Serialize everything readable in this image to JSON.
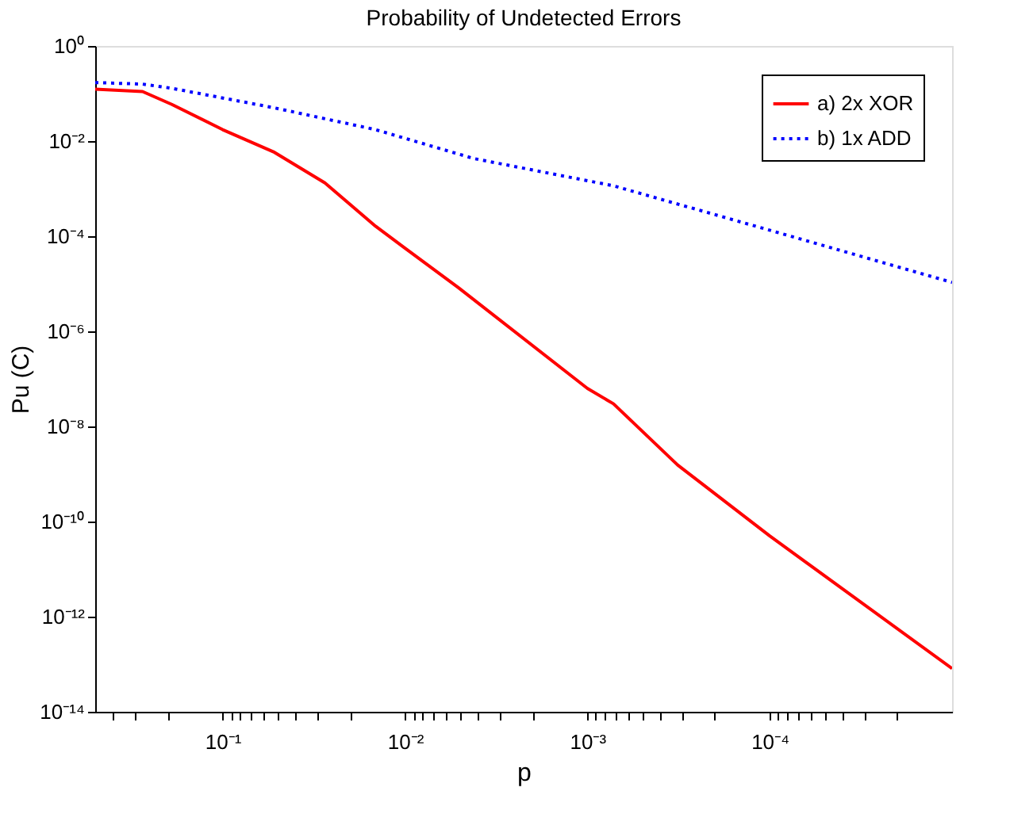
{
  "chart_data": {
    "type": "line",
    "title": "Probability of Undetected Errors",
    "xlabel": "p",
    "ylabel": "Pu (C)",
    "log": "xy",
    "grid": false,
    "legend": "top right",
    "xlim": [
      0.5,
      1e-05
    ],
    "ylim": [
      1e-14,
      1
    ],
    "xticks": [
      {
        "value": 0.4,
        "label": null
      },
      {
        "value": 0.3,
        "label": null
      },
      {
        "value": 0.2,
        "label": null
      },
      {
        "value": 0.1,
        "label": "10⁻¹"
      },
      {
        "value": 0.09,
        "label": null
      },
      {
        "value": 0.08,
        "label": null
      },
      {
        "value": 0.07,
        "label": null
      },
      {
        "value": 0.06,
        "label": null
      },
      {
        "value": 0.05,
        "label": null
      },
      {
        "value": 0.04,
        "label": null
      },
      {
        "value": 0.03,
        "label": null
      },
      {
        "value": 0.02,
        "label": null
      },
      {
        "value": 0.01,
        "label": "10⁻²"
      },
      {
        "value": 0.009,
        "label": null
      },
      {
        "value": 0.008,
        "label": null
      },
      {
        "value": 0.007,
        "label": null
      },
      {
        "value": 0.006,
        "label": null
      },
      {
        "value": 0.005,
        "label": null
      },
      {
        "value": 0.004,
        "label": null
      },
      {
        "value": 0.003,
        "label": null
      },
      {
        "value": 0.002,
        "label": null
      },
      {
        "value": 0.001,
        "label": "10⁻³"
      },
      {
        "value": 0.0009,
        "label": null
      },
      {
        "value": 0.0008,
        "label": null
      },
      {
        "value": 0.0007,
        "label": null
      },
      {
        "value": 0.0006,
        "label": null
      },
      {
        "value": 0.0005,
        "label": null
      },
      {
        "value": 0.0004,
        "label": null
      },
      {
        "value": 0.0003,
        "label": null
      },
      {
        "value": 0.0002,
        "label": null
      },
      {
        "value": 0.0001,
        "label": "10⁻⁴"
      },
      {
        "value": 9e-05,
        "label": null
      },
      {
        "value": 8e-05,
        "label": null
      },
      {
        "value": 7e-05,
        "label": null
      },
      {
        "value": 6e-05,
        "label": null
      },
      {
        "value": 5e-05,
        "label": null
      },
      {
        "value": 4e-05,
        "label": null
      },
      {
        "value": 3e-05,
        "label": null
      },
      {
        "value": 2e-05,
        "label": null
      }
    ],
    "yticks": [
      {
        "value": 1,
        "label": "10⁰"
      },
      {
        "value": 0.01,
        "label": "10⁻²"
      },
      {
        "value": 0.0001,
        "label": "10⁻⁴"
      },
      {
        "value": 1e-06,
        "label": "10⁻⁶"
      },
      {
        "value": 1e-08,
        "label": "10⁻⁸"
      },
      {
        "value": 1e-10,
        "label": "10⁻¹⁰"
      },
      {
        "value": 1e-12,
        "label": "10⁻¹²"
      },
      {
        "value": 1e-14,
        "label": "10⁻¹⁴"
      }
    ],
    "series": [
      {
        "name": "a) 2x XOR",
        "color": "#ff0000",
        "line_style": "solid",
        "x": [
          0.5,
          0.275,
          0.19,
          0.1,
          0.052,
          0.0275,
          0.0145,
          0.01,
          0.0051,
          0.001,
          0.00072,
          0.00032,
          0.0001,
          1e-05
        ],
        "values": [
          0.123,
          0.11,
          0.059,
          0.0174,
          0.0058,
          0.00132,
          0.000162,
          5.6e-05,
          8.3e-06,
          6.3e-08,
          3e-08,
          1.55e-09,
          5e-11,
          8.1e-14
        ]
      },
      {
        "name": "b) 1x ADD",
        "color": "#0000ff",
        "line_style": "dotted",
        "x": [
          0.5,
          0.275,
          0.19,
          0.052,
          0.0145,
          0.0042,
          0.00072,
          0.000105,
          1e-05
        ],
        "values": [
          0.17,
          0.158,
          0.129,
          0.05,
          0.0174,
          0.0043,
          0.00115,
          0.000141,
          1.07e-05
        ]
      }
    ]
  }
}
